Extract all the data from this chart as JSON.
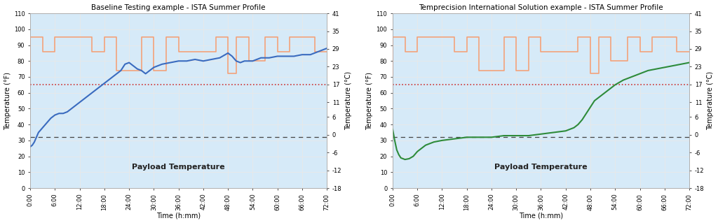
{
  "title1": "Baseline Testing example - ISTA Summer Profile",
  "title2": "Temprecision International Solution example - ISTA Summer Profile",
  "xlabel": "Time (h:mm)",
  "ylabel_left": "Temperature (°F)",
  "ylabel_right": "Temperature (°C)",
  "payload_label": "Payload Temperature",
  "ylim_f": [
    0,
    110
  ],
  "ylim_c": [
    -18,
    41
  ],
  "xticks": [
    0,
    6,
    12,
    18,
    24,
    30,
    36,
    42,
    48,
    54,
    60,
    66,
    72
  ],
  "xtick_labels": [
    "0:00",
    "6:00",
    "12:00",
    "18:00",
    "24:00",
    "30:00",
    "36:00",
    "42:00",
    "48:00",
    "54:00",
    "60:00",
    "66:00",
    "72:00"
  ],
  "yticks_f": [
    0,
    10,
    20,
    30,
    40,
    50,
    60,
    70,
    80,
    90,
    100,
    110
  ],
  "yticks_c": [
    -18,
    -12,
    -6,
    0,
    6,
    11,
    17,
    23,
    29,
    35,
    41
  ],
  "freeze_line_f": 32,
  "upper_limit_f": 65,
  "bg_color": "#d6eaf8",
  "orange_color": "#f4a27a",
  "blue_line_color": "#3a6bbf",
  "green_line_color": "#2e8b3a",
  "red_dashed_color": "#cc3333",
  "black_dashed_color": "#444444",
  "grid_color": "#e8e8e8",
  "ambient_profile1": {
    "x": [
      0,
      0,
      3,
      3,
      6,
      6,
      15,
      15,
      18,
      18,
      21,
      21,
      27,
      27,
      30,
      30,
      33,
      33,
      36,
      36,
      45,
      45,
      48,
      48,
      50,
      50,
      53,
      53,
      57,
      57,
      60,
      60,
      63,
      63,
      69,
      69,
      72
    ],
    "y": [
      71,
      95,
      95,
      86,
      86,
      95,
      95,
      86,
      86,
      95,
      95,
      74,
      74,
      95,
      95,
      74,
      74,
      95,
      95,
      86,
      86,
      95,
      95,
      72,
      72,
      95,
      95,
      80,
      80,
      95,
      95,
      86,
      86,
      95,
      95,
      86,
      86
    ]
  },
  "ambient_profile2": {
    "x": [
      0,
      0,
      3,
      3,
      6,
      6,
      15,
      15,
      18,
      18,
      21,
      21,
      27,
      27,
      30,
      30,
      33,
      33,
      36,
      36,
      45,
      45,
      48,
      48,
      50,
      50,
      53,
      53,
      57,
      57,
      60,
      60,
      63,
      63,
      69,
      69,
      72
    ],
    "y": [
      71,
      95,
      95,
      86,
      86,
      95,
      95,
      86,
      86,
      95,
      95,
      74,
      74,
      95,
      95,
      74,
      74,
      95,
      95,
      86,
      86,
      95,
      95,
      72,
      72,
      95,
      95,
      80,
      80,
      95,
      95,
      86,
      86,
      95,
      95,
      86,
      86
    ]
  },
  "blue_payload": {
    "x": [
      0,
      0.5,
      1,
      1.5,
      2,
      3,
      4,
      5,
      6,
      7,
      8,
      9,
      10,
      12,
      14,
      16,
      18,
      20,
      22,
      23,
      24,
      25,
      26,
      27,
      28,
      29,
      30,
      32,
      34,
      36,
      38,
      40,
      42,
      44,
      46,
      48,
      49,
      50,
      51,
      52,
      53,
      54,
      56,
      58,
      60,
      62,
      64,
      66,
      68,
      70,
      72
    ],
    "y": [
      26,
      27,
      29,
      32,
      35,
      38,
      41,
      44,
      46,
      47,
      47,
      48,
      50,
      54,
      58,
      62,
      66,
      70,
      74,
      78,
      79,
      77,
      75,
      74,
      72,
      74,
      76,
      78,
      79,
      80,
      80,
      81,
      80,
      81,
      82,
      85,
      83,
      80,
      79,
      80,
      80,
      80,
      82,
      82,
      83,
      83,
      83,
      84,
      84,
      86,
      88
    ]
  },
  "green_payload": {
    "x": [
      0,
      0.5,
      1,
      1.5,
      2,
      2.5,
      3,
      4,
      5,
      6,
      8,
      10,
      12,
      15,
      18,
      21,
      24,
      27,
      30,
      33,
      36,
      39,
      42,
      44,
      45,
      46,
      47,
      48,
      49,
      50,
      51,
      52,
      53,
      54,
      56,
      58,
      60,
      62,
      64,
      66,
      68,
      70,
      72
    ],
    "y": [
      37,
      30,
      24,
      21,
      19,
      18.5,
      18,
      18.5,
      20,
      23,
      27,
      29,
      30,
      31,
      32,
      32,
      32,
      33,
      33,
      33,
      34,
      35,
      36,
      38,
      40,
      43,
      47,
      51,
      55,
      57,
      59,
      61,
      63,
      65,
      68,
      70,
      72,
      74,
      75,
      76,
      77,
      78,
      79
    ]
  }
}
